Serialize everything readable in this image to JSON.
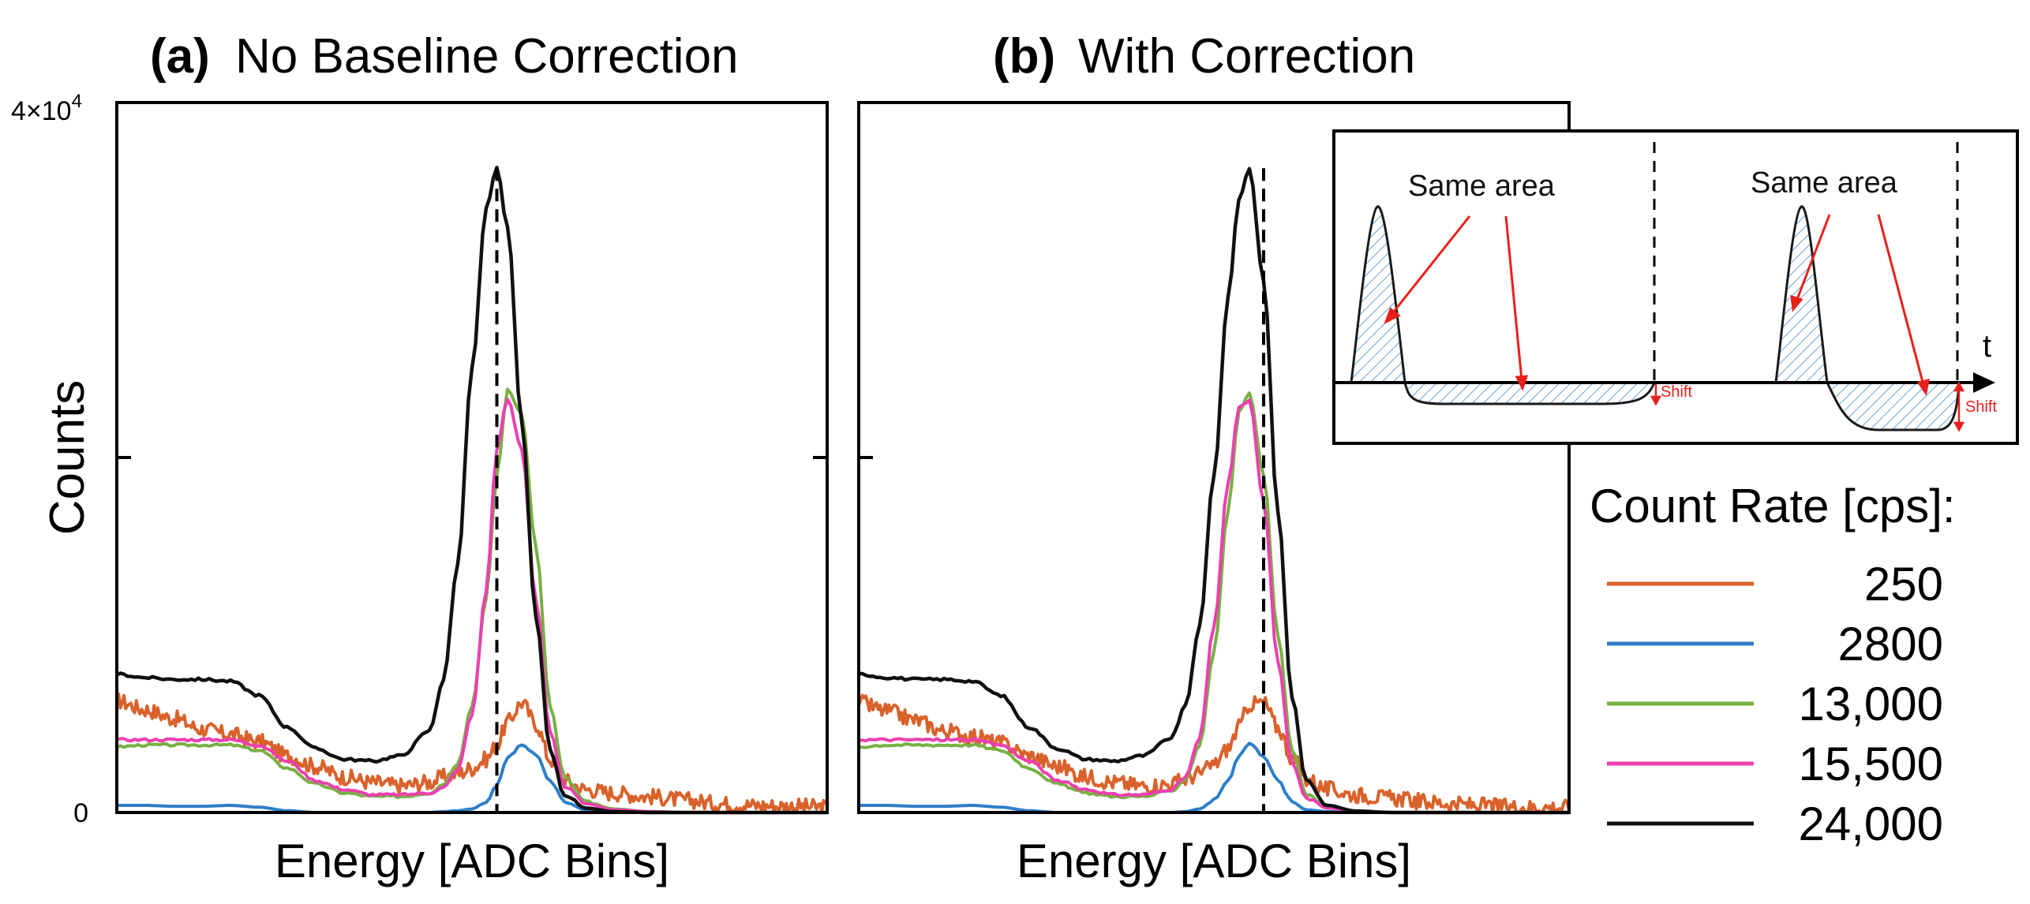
{
  "figure": {
    "panel_a": {
      "label": "(a)",
      "title": "No Baseline Correction"
    },
    "panel_b": {
      "label": "(b)",
      "title": "With Correction"
    },
    "ylabel": "Counts",
    "xlabel": "Energy [ADC Bins]",
    "ytick_top": "4×10",
    "ytick_top_exp": "4",
    "ytick_zero": "0"
  },
  "inset": {
    "label_left": "Same area",
    "label_right": "Same area",
    "shift_label_left": "Shift",
    "shift_label_right": "Shift",
    "axis_label": "t"
  },
  "legend": {
    "title": "Count Rate [cps]:",
    "entries": [
      {
        "label": "250",
        "color": "#d9622b"
      },
      {
        "label": "2800",
        "color": "#2e7fc7"
      },
      {
        "label": "13,000",
        "color": "#79b043"
      },
      {
        "label": "15,500",
        "color": "#ec3fb0"
      },
      {
        "label": "24,000",
        "color": "#111111"
      }
    ]
  },
  "chart_data": [
    {
      "type": "line",
      "panel": "a",
      "title": "(a) No Baseline Correction",
      "xlabel": "Energy [ADC Bins]",
      "ylabel": "Counts",
      "ylim": [
        0,
        40000
      ],
      "xlim": [
        0,
        100
      ],
      "x": [
        0,
        4,
        8,
        12,
        16,
        20,
        24,
        28,
        32,
        36,
        40,
        44,
        46,
        48,
        50,
        52,
        53.5,
        55,
        57,
        59,
        61,
        63,
        66,
        70,
        75,
        80,
        85,
        90,
        95,
        100
      ],
      "peak_marker_x": 53.5,
      "series": [
        {
          "name": "250",
          "color": "#d9622b",
          "values": [
            6300,
            5800,
            5300,
            4700,
            4400,
            4000,
            3200,
            2600,
            2000,
            1700,
            1500,
            1700,
            2000,
            2200,
            2500,
            3000,
            3800,
            5100,
            6200,
            5000,
            3000,
            1800,
            1300,
            1100,
            900,
            700,
            500,
            400,
            350,
            300
          ]
        },
        {
          "name": "2800",
          "color": "#2e7fc7",
          "values": [
            400,
            400,
            350,
            350,
            400,
            300,
            100,
            0,
            0,
            0,
            0,
            0,
            50,
            100,
            200,
            600,
            1500,
            3100,
            3800,
            3300,
            1800,
            600,
            150,
            50,
            0,
            0,
            0,
            0,
            0,
            0
          ]
        },
        {
          "name": "13,000",
          "color": "#79b043",
          "values": [
            3700,
            3800,
            3800,
            3800,
            3800,
            3500,
            2500,
            1600,
            1100,
            900,
            900,
            1100,
            1600,
            2800,
            6000,
            12000,
            19000,
            23800,
            22500,
            15000,
            6000,
            2000,
            600,
            200,
            50,
            0,
            0,
            0,
            0,
            0
          ]
        },
        {
          "name": "15,500",
          "color": "#ec3fb0",
          "values": [
            4100,
            4100,
            4100,
            4100,
            4100,
            3800,
            2900,
            1800,
            1300,
            1000,
            1000,
            1100,
            1400,
            2400,
            5500,
            12500,
            20500,
            23300,
            20500,
            12000,
            4500,
            1500,
            500,
            150,
            50,
            0,
            0,
            0,
            0,
            0
          ]
        },
        {
          "name": "24,000",
          "color": "#111111",
          "values": [
            7800,
            7600,
            7500,
            7500,
            7400,
            6600,
            4800,
            3600,
            3000,
            2900,
            3200,
            4600,
            7500,
            14000,
            25000,
            34000,
            36300,
            33000,
            22000,
            11000,
            3500,
            1000,
            250,
            50,
            0,
            0,
            0,
            0,
            0,
            0
          ]
        }
      ]
    },
    {
      "type": "line",
      "panel": "b",
      "title": "(b) With Correction",
      "xlabel": "Energy [ADC Bins]",
      "ylabel": "Counts",
      "ylim": [
        0,
        40000
      ],
      "xlim": [
        0,
        100
      ],
      "x": [
        0,
        4,
        8,
        12,
        16,
        20,
        24,
        28,
        32,
        36,
        40,
        44,
        46,
        48,
        50,
        52,
        53.5,
        55,
        57,
        59,
        61,
        63,
        66,
        70,
        75,
        80,
        85,
        90,
        95,
        100
      ],
      "peak_marker_x": 57,
      "series": [
        {
          "name": "250",
          "color": "#d9622b",
          "values": [
            6200,
            5700,
            5200,
            4600,
            4300,
            3900,
            3200,
            2600,
            2000,
            1700,
            1500,
            1600,
            1900,
            2200,
            2700,
            3600,
            4800,
            6100,
            6200,
            4800,
            3100,
            1900,
            1300,
            1000,
            800,
            600,
            450,
            350,
            300,
            300
          ]
        },
        {
          "name": "2800",
          "color": "#2e7fc7",
          "values": [
            400,
            400,
            350,
            350,
            400,
            300,
            100,
            0,
            0,
            0,
            0,
            0,
            50,
            200,
            700,
            1800,
            3200,
            3900,
            3200,
            1800,
            600,
            150,
            50,
            0,
            0,
            0,
            0,
            0,
            0,
            0
          ]
        },
        {
          "name": "13,000",
          "color": "#79b043",
          "values": [
            3700,
            3800,
            3800,
            3800,
            3800,
            3500,
            2500,
            1600,
            1100,
            900,
            900,
            1200,
            1900,
            3800,
            9000,
            17000,
            22500,
            23700,
            19000,
            10000,
            3500,
            1000,
            300,
            100,
            0,
            0,
            0,
            0,
            0,
            0
          ]
        },
        {
          "name": "15,500",
          "color": "#ec3fb0",
          "values": [
            4100,
            4100,
            4100,
            4100,
            4100,
            3800,
            2900,
            1800,
            1300,
            1000,
            1000,
            1300,
            2000,
            4200,
            10500,
            18500,
            22800,
            23200,
            17500,
            8500,
            2800,
            800,
            250,
            80,
            0,
            0,
            0,
            0,
            0,
            0
          ]
        },
        {
          "name": "24,000",
          "color": "#111111",
          "values": [
            7800,
            7600,
            7500,
            7500,
            7400,
            6600,
            4800,
            3600,
            3000,
            2900,
            3200,
            4200,
            6000,
            10500,
            19000,
            29000,
            34500,
            36300,
            30000,
            17000,
            6500,
            1800,
            400,
            80,
            0,
            0,
            0,
            0,
            0,
            0
          ]
        }
      ]
    }
  ]
}
